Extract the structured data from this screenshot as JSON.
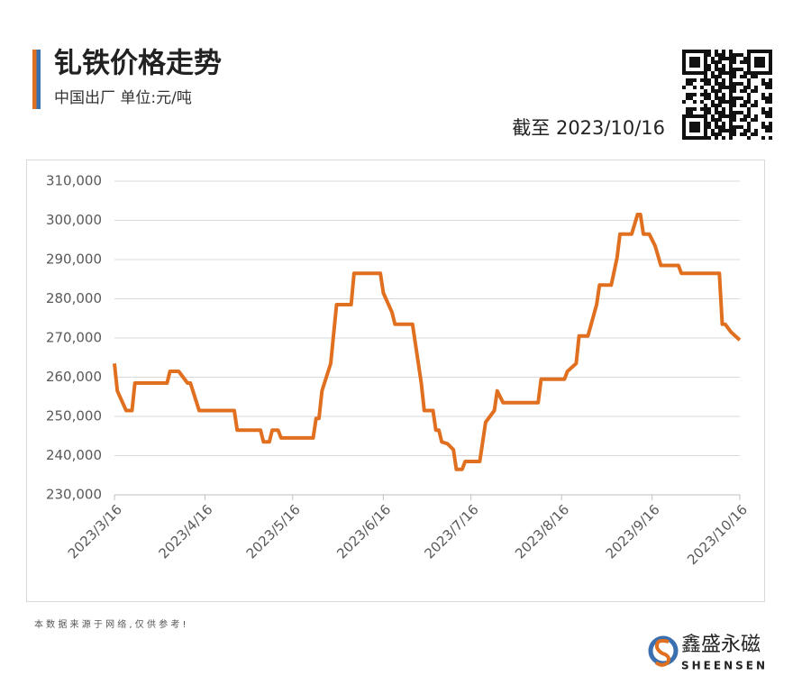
{
  "chart_data": {
    "type": "line",
    "title": "钆铁价格走势",
    "subtitle": "中国出厂  单位:元/吨",
    "date_note": "截至 2023/10/16",
    "source_note": "本 数 据 来 源 于 网 络 , 仅 供 参 考 !",
    "brand": "鑫盛永磁",
    "brand_en": "SHEENSEN",
    "x": [
      "2023/3/16",
      "2023/3/17",
      "2023/3/20",
      "2023/3/22",
      "2023/3/23",
      "2023/4/3",
      "2023/4/4",
      "2023/4/7",
      "2023/4/10",
      "2023/4/11",
      "2023/4/14",
      "2023/4/26",
      "2023/4/27",
      "2023/5/5",
      "2023/5/6",
      "2023/5/8",
      "2023/5/9",
      "2023/5/11",
      "2023/5/12",
      "2023/5/23",
      "2023/5/24",
      "2023/5/25",
      "2023/5/26",
      "2023/5/29",
      "2023/5/31",
      "2023/6/5",
      "2023/6/6",
      "2023/6/15",
      "2023/6/16",
      "2023/6/19",
      "2023/6/20",
      "2023/6/26",
      "2023/6/29",
      "2023/6/30",
      "2023/7/3",
      "2023/7/4",
      "2023/7/5",
      "2023/7/6",
      "2023/7/8",
      "2023/7/10",
      "2023/7/11",
      "2023/7/13",
      "2023/7/14",
      "2023/7/19",
      "2023/7/21",
      "2023/7/24",
      "2023/7/25",
      "2023/7/27",
      "2023/8/8",
      "2023/8/9",
      "2023/8/17",
      "2023/8/18",
      "2023/8/21",
      "2023/8/22",
      "2023/8/25",
      "2023/8/28",
      "2023/8/29",
      "2023/9/2",
      "2023/9/4",
      "2023/9/5",
      "2023/9/9",
      "2023/9/11",
      "2023/9/12",
      "2023/9/13",
      "2023/9/15",
      "2023/9/17",
      "2023/9/19",
      "2023/9/25",
      "2023/9/26",
      "2023/10/9",
      "2023/10/10",
      "2023/10/11",
      "2023/10/13",
      "2023/10/16"
    ],
    "series": [
      {
        "name": "钆铁",
        "color": "#e07020",
        "values": [
          263500,
          256500,
          251500,
          251500,
          258500,
          258500,
          261500,
          261500,
          258500,
          258500,
          251500,
          251500,
          246500,
          246500,
          243500,
          243500,
          246500,
          246500,
          244500,
          244500,
          249500,
          249500,
          256500,
          263500,
          278500,
          278500,
          286500,
          286500,
          281500,
          276500,
          273500,
          273500,
          258500,
          251500,
          251500,
          246500,
          246500,
          243500,
          243000,
          241500,
          236500,
          236500,
          238500,
          238500,
          248500,
          251500,
          256500,
          253500,
          253500,
          259500,
          259500,
          261500,
          263500,
          270500,
          270500,
          278500,
          283500,
          283500,
          290500,
          296500,
          296500,
          301500,
          301500,
          296500,
          296500,
          293500,
          288500,
          288500,
          286500,
          286500,
          273500,
          273500,
          271500,
          269500
        ]
      }
    ],
    "xlim": [
      "2023/3/16",
      "2023/10/16"
    ],
    "xticks": [
      "2023/3/16",
      "2023/4/16",
      "2023/5/16",
      "2023/6/16",
      "2023/7/16",
      "2023/8/16",
      "2023/9/16",
      "2023/10/16"
    ],
    "ylim": [
      230000,
      310000
    ],
    "yticks": [
      {
        "value": 230000,
        "label": "230,000"
      },
      {
        "value": 240000,
        "label": "240,000"
      },
      {
        "value": 250000,
        "label": "250,000"
      },
      {
        "value": 260000,
        "label": "260,000"
      },
      {
        "value": 270000,
        "label": "270,000"
      },
      {
        "value": 280000,
        "label": "280,000"
      },
      {
        "value": 290000,
        "label": "290,000"
      },
      {
        "value": 300000,
        "label": "300,000"
      },
      {
        "value": 310000,
        "label": "310,000"
      }
    ],
    "grid": true
  }
}
